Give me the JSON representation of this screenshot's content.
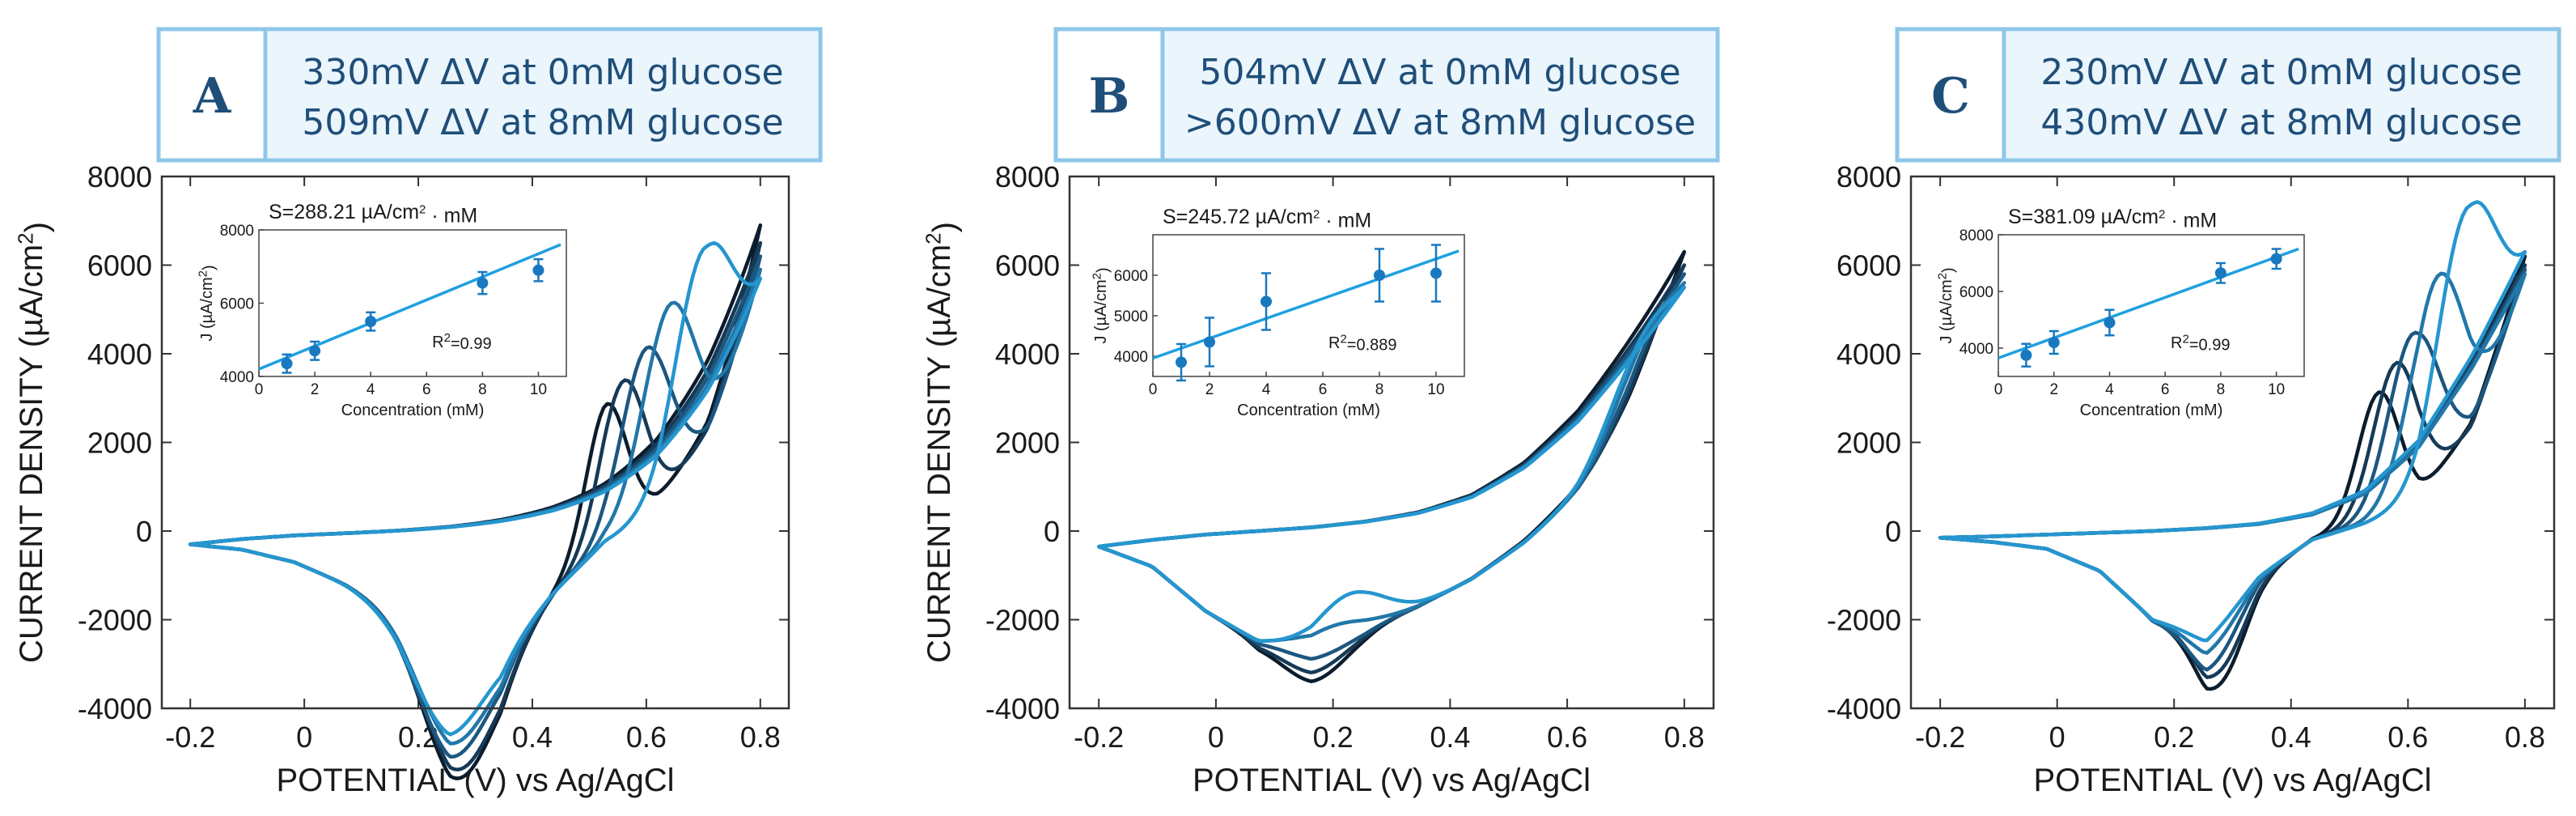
{
  "chart_data": [
    {
      "panel": "A",
      "type": "line",
      "header_lines": [
        "330mV ΔV at 0mM glucose",
        "509mV ΔV at 8mM glucose"
      ],
      "xlabel": "POTENTIAL (V) vs Ag/AgCl",
      "ylabel": "CURRENT DENSITY (µA/cm²)",
      "xlim": [
        -0.25,
        0.85
      ],
      "ylim": [
        -4000,
        8000
      ],
      "xticks": [
        "-0.2",
        "0",
        "0.2",
        "0.4",
        "0.6",
        "0.8"
      ],
      "yticks": [
        "-4000",
        "-2000",
        "0",
        "2000",
        "4000",
        "6000",
        "8000"
      ],
      "series_colors": [
        "#0c1c2c",
        "#163a57",
        "#1c5780",
        "#2277a8",
        "#2596cf"
      ],
      "cv": {
        "start": -0.2,
        "end": 0.8,
        "fwd_base": [
          -300,
          -180,
          -100,
          -50,
          0,
          60,
          140,
          250,
          420,
          750,
          1400,
          2500
        ],
        "rev_base": [
          -300,
          -420,
          -700,
          -1200,
          -1800,
          -2800,
          -2700,
          -1400,
          -300,
          250,
          1200,
          3500
        ],
        "ox_peak": [
          0.53,
          0.56,
          0.6,
          0.64,
          0.7
        ],
        "ox_amp": [
          3000,
          3300,
          3700,
          4200,
          4700
        ],
        "ox_w": [
          0.05,
          0.055,
          0.06,
          0.065,
          0.07
        ],
        "red_peak": [
          0.27,
          0.27,
          0.26,
          0.26,
          0.25
        ],
        "red_amp": [
          -2800,
          -2600,
          -2300,
          -2000,
          -1800
        ],
        "red_w": 0.09,
        "end_y": [
          6900,
          6500,
          6200,
          5900,
          5700
        ]
      },
      "inset": {
        "xlabel": "Concentration (mM)",
        "ylabel": "J (µA/cm²)",
        "xlim": [
          0,
          11
        ],
        "ylim": [
          4000,
          8000
        ],
        "xticks": [
          "0",
          "2",
          "4",
          "6",
          "8",
          "10"
        ],
        "yticks": [
          "4000",
          "6000",
          "8000"
        ],
        "x": [
          1,
          2,
          4,
          8,
          10
        ],
        "y": [
          4350,
          4700,
          5500,
          6550,
          6900
        ],
        "err": [
          250,
          250,
          250,
          300,
          300
        ],
        "fit": [
          4200,
          7600
        ],
        "slope": "S=288.21 µA/cm² · mM",
        "r2": "R²=0.99"
      }
    },
    {
      "panel": "B",
      "type": "line",
      "header_lines": [
        "504mV ΔV at 0mM glucose",
        ">600mV ΔV at 8mM glucose"
      ],
      "xlabel": "POTENTIAL (V) vs Ag/AgCl",
      "ylabel": "CURRENT DENSITY (µA/cm²)",
      "xlim": [
        -0.25,
        0.85
      ],
      "ylim": [
        -4000,
        8000
      ],
      "xticks": [
        "-0.2",
        "0",
        "0.2",
        "0.4",
        "0.6",
        "0.8"
      ],
      "yticks": [
        "-4000",
        "-2000",
        "0",
        "2000",
        "4000",
        "6000",
        "8000"
      ],
      "series_colors": [
        "#0c1c2c",
        "#163a57",
        "#1c5780",
        "#2277a8",
        "#2596cf"
      ],
      "cv": {
        "start": -0.2,
        "end": 0.8,
        "fwd_base": [
          -350,
          -200,
          -80,
          0,
          80,
          200,
          380,
          700,
          1300,
          2200,
          3400,
          4600
        ],
        "rev_base": [
          -350,
          -800,
          -1800,
          -2500,
          -2600,
          -2200,
          -1700,
          -1100,
          -300,
          700,
          2000,
          3600
        ],
        "ox_peak": [
          0.77,
          0.76,
          0.75,
          0.74,
          0.73
        ],
        "ox_amp": [
          500,
          800,
          1100,
          1400,
          1500
        ],
        "ox_w": [
          0.08,
          0.08,
          0.08,
          0.08,
          0.08
        ],
        "red_peak": [
          0.17,
          0.17,
          0.18,
          0.2,
          0.23
        ],
        "red_amp": [
          -800,
          -600,
          -300,
          300,
          900
        ],
        "red_w": 0.08,
        "end_y": [
          6300,
          6000,
          5800,
          5600,
          5500
        ]
      },
      "inset": {
        "xlabel": "Concentration (mM)",
        "ylabel": "J (µA/cm²)",
        "xlim": [
          0,
          11
        ],
        "ylim": [
          3500,
          7000
        ],
        "xticks": [
          "0",
          "2",
          "4",
          "6",
          "8",
          "10"
        ],
        "yticks": [
          "4000",
          "5000",
          "6000"
        ],
        "x": [
          1,
          2,
          4,
          8,
          10
        ],
        "y": [
          3850,
          4350,
          5350,
          6000,
          6050
        ],
        "err": [
          450,
          600,
          700,
          650,
          700
        ],
        "fit": [
          3950,
          6600
        ],
        "slope": "S=245.72 µA/cm² · mM",
        "r2": "R²=0.889"
      }
    },
    {
      "panel": "C",
      "type": "line",
      "header_lines": [
        "230mV ΔV at 0mM glucose",
        "430mV ΔV at 8mM glucose"
      ],
      "xlabel": "POTENTIAL (V) vs Ag/AgCl",
      "ylabel": "",
      "xlim": [
        -0.25,
        0.85
      ],
      "ylim": [
        -4000,
        8000
      ],
      "xticks": [
        "-0.2",
        "0",
        "0.2",
        "0.4",
        "0.6",
        "0.8"
      ],
      "yticks": [
        "-4000",
        "-2000",
        "0",
        "2000",
        "4000",
        "6000",
        "8000"
      ],
      "series_colors": [
        "#0c1c2c",
        "#163a57",
        "#1c5780",
        "#2277a8",
        "#2596cf"
      ],
      "cv": {
        "start": -0.2,
        "end": 0.8,
        "fwd_base": [
          -150,
          -120,
          -80,
          -40,
          0,
          60,
          150,
          350,
          800,
          1800,
          3500,
          5500
        ],
        "rev_base": [
          -150,
          -250,
          -400,
          -900,
          -2000,
          -2300,
          -1000,
          -200,
          150,
          600,
          2000,
          5000
        ],
        "ox_peak": [
          0.55,
          0.58,
          0.61,
          0.65,
          0.7
        ],
        "ox_amp": [
          2800,
          3300,
          3800,
          4500,
          5200
        ],
        "ox_w": [
          0.05,
          0.055,
          0.06,
          0.065,
          0.07
        ],
        "red_peak": [
          0.28,
          0.28,
          0.27,
          0.27,
          0.27
        ],
        "red_amp": [
          -1500,
          -1200,
          -900,
          -500,
          -200
        ],
        "red_w": 0.06,
        "end_y": [
          6200,
          6000,
          5900,
          5800,
          6300
        ]
      },
      "inset": {
        "xlabel": "Concentration (mM)",
        "ylabel": "J (µA/cm²)",
        "xlim": [
          0,
          11
        ],
        "ylim": [
          3000,
          8000
        ],
        "xticks": [
          "0",
          "2",
          "4",
          "6",
          "8",
          "10"
        ],
        "yticks": [
          "4000",
          "6000",
          "8000"
        ],
        "x": [
          1,
          2,
          4,
          8,
          10
        ],
        "y": [
          3750,
          4200,
          4900,
          6650,
          7150
        ],
        "err": [
          400,
          400,
          450,
          350,
          350
        ],
        "fit": [
          3650,
          7500
        ],
        "slope": "S=381.09 µA/cm² · mM",
        "r2": "R²=0.99"
      }
    }
  ]
}
